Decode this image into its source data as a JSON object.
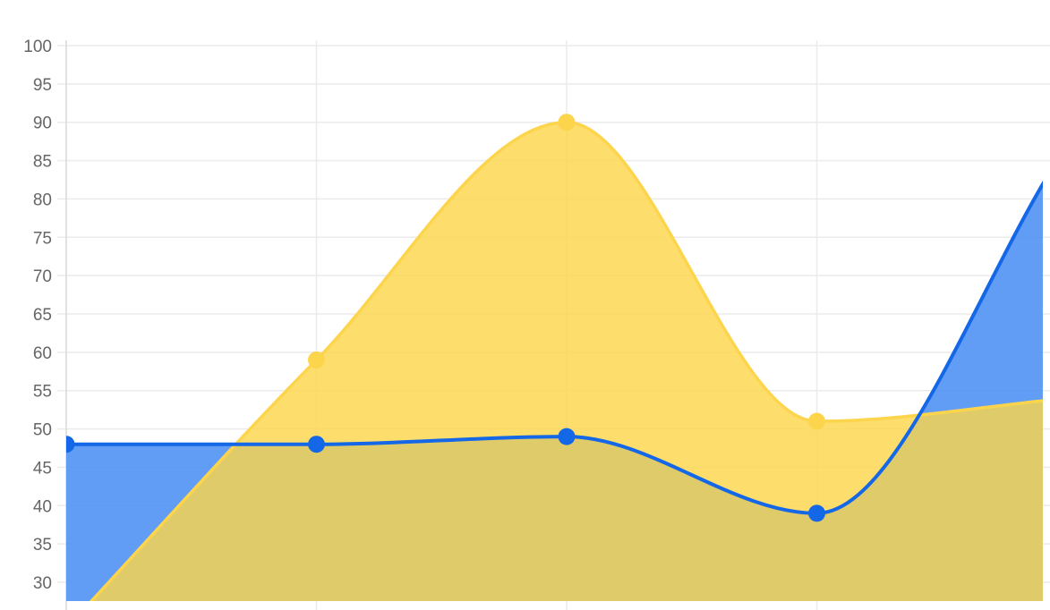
{
  "chart_data": {
    "type": "area",
    "title": "",
    "xlabel": "",
    "ylabel": "",
    "ylim": [
      30,
      100
    ],
    "yticks": [
      100,
      95,
      90,
      85,
      80,
      75,
      70,
      65,
      60,
      55,
      50,
      45,
      40,
      35,
      30
    ],
    "ytick_labels": [
      "100",
      "95",
      "90",
      "85",
      "80",
      "75",
      "70",
      "65",
      "60",
      "55",
      "50",
      "45",
      "40",
      "35",
      "30"
    ],
    "grid": true,
    "curve": "smooth",
    "legend": "none",
    "x": [
      0,
      1,
      2,
      3,
      4
    ],
    "series": [
      {
        "color": "#fdd54c",
        "fill": "#fdd54c",
        "values": [
          24,
          59,
          90,
          51,
          54
        ]
      },
      {
        "color": "#1467e6",
        "fill": "#4b90f4",
        "values": [
          48,
          48,
          49,
          39,
          87
        ]
      }
    ]
  }
}
